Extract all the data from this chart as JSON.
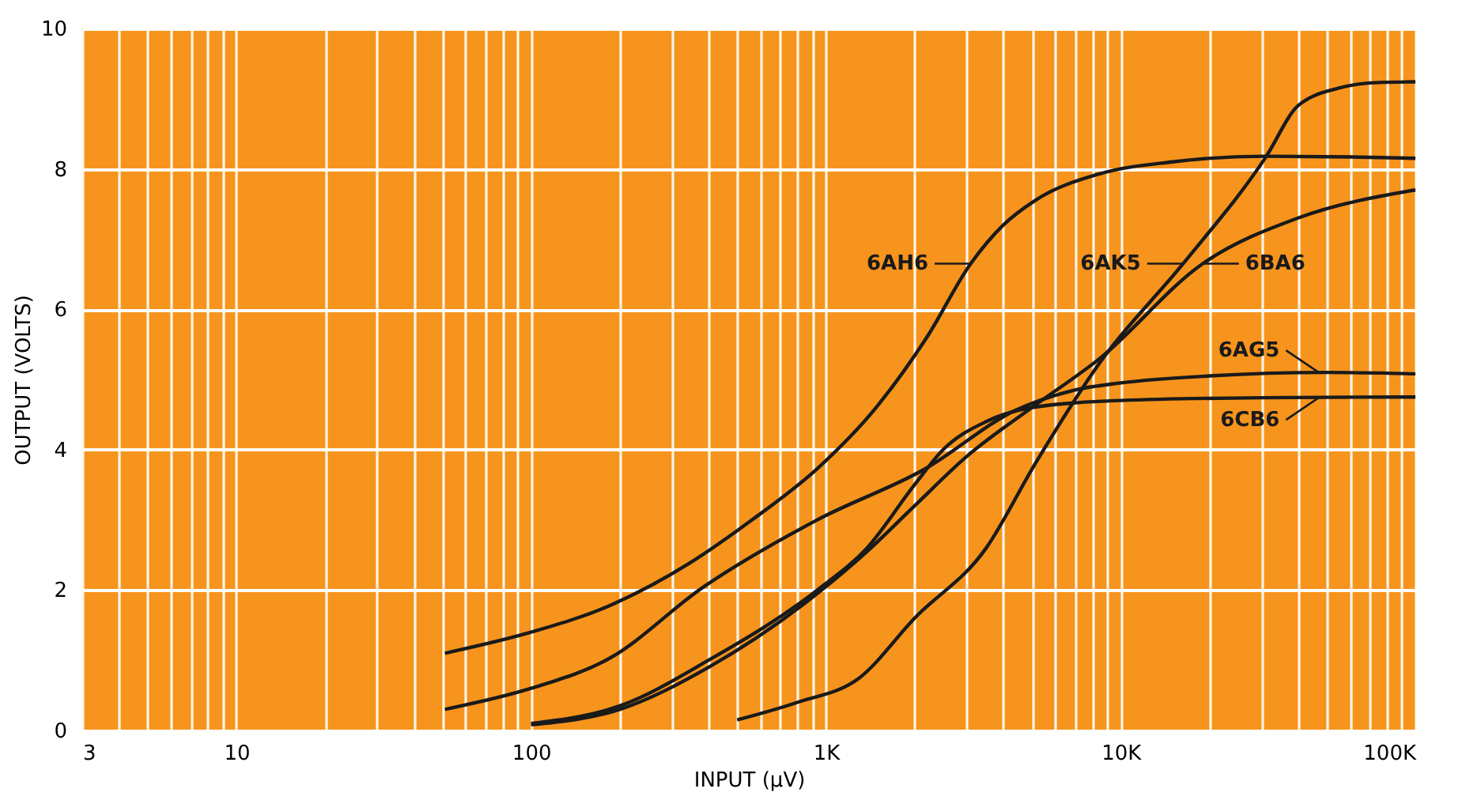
{
  "chart_data": {
    "type": "line",
    "xlabel": "INPUT (µV)",
    "ylabel": "OUTPUT (VOLTS)",
    "log": "x",
    "xlim": [
      3,
      100000
    ],
    "ylim": [
      0,
      10
    ],
    "xticks": [
      3,
      {
        "value": 4,
        "label": null
      },
      {
        "value": 5,
        "label": null
      },
      {
        "value": 6,
        "label": null
      },
      {
        "value": 7,
        "label": null
      },
      {
        "value": 8,
        "label": null
      },
      {
        "value": 9,
        "label": null
      },
      10,
      {
        "value": 20,
        "label": null
      },
      {
        "value": 30,
        "label": null
      },
      {
        "value": 40,
        "label": null
      },
      {
        "value": 50,
        "label": null
      },
      {
        "value": 60,
        "label": null
      },
      {
        "value": 70,
        "label": null
      },
      {
        "value": 80,
        "label": null
      },
      {
        "value": 90,
        "label": null
      },
      100,
      {
        "value": 200,
        "label": null
      },
      {
        "value": 300,
        "label": null
      },
      {
        "value": 400,
        "label": null
      },
      {
        "value": 500,
        "label": null
      },
      {
        "value": 600,
        "label": null
      },
      {
        "value": 700,
        "label": null
      },
      {
        "value": 800,
        "label": null
      },
      {
        "value": 900,
        "label": null
      },
      {
        "value": 1000,
        "label": "1K"
      },
      {
        "value": 2000,
        "label": null
      },
      {
        "value": 3000,
        "label": null
      },
      {
        "value": 4000,
        "label": null
      },
      {
        "value": 5000,
        "label": null
      },
      {
        "value": 6000,
        "label": null
      },
      {
        "value": 7000,
        "label": null
      },
      {
        "value": 8000,
        "label": null
      },
      {
        "value": 9000,
        "label": null
      },
      {
        "value": 10000,
        "label": "10K"
      },
      {
        "value": 20000,
        "label": null
      },
      {
        "value": 30000,
        "label": null
      },
      {
        "value": 40000,
        "label": null
      },
      {
        "value": 50000,
        "label": null
      },
      {
        "value": 60000,
        "label": null
      },
      {
        "value": 70000,
        "label": null
      },
      {
        "value": 80000,
        "label": null
      },
      {
        "value": 90000,
        "label": null
      },
      {
        "value": 100000,
        "label": "100K"
      }
    ],
    "yticks": [
      0,
      2,
      4,
      6,
      8,
      10
    ],
    "grid": true,
    "marker": "none",
    "line_style": "solid",
    "series": [
      {
        "color": "#1a1a1a",
        "x": [
          51,
          100,
          185,
          350,
          562,
          935,
          1480,
          2200,
          3100,
          4000,
          5130,
          8500,
          15000,
          31000,
          60000,
          100000
        ],
        "values": [
          1.1,
          1.4,
          1.78,
          2.4,
          3.0,
          3.73,
          4.6,
          5.6,
          6.65,
          7.2,
          7.55,
          7.93,
          8.1,
          8.18,
          8.17,
          8.15
        ]
      },
      {
        "color": "#1a1a1a",
        "x": [
          500,
          800,
          1300,
          2000,
          3500,
          5130,
          8500,
          16300,
          31000,
          40000,
          55000,
          75000,
          100000
        ],
        "values": [
          0.15,
          0.4,
          0.75,
          1.6,
          2.6,
          3.8,
          5.24,
          6.65,
          8.16,
          8.9,
          9.15,
          9.23,
          9.24
        ]
      },
      {
        "color": "#1a1a1a",
        "x": [
          100,
          200,
          400,
          935,
          1380,
          2000,
          3000,
          5000,
          8500,
          19000,
          40000,
          100000
        ],
        "values": [
          0.08,
          0.3,
          0.9,
          1.95,
          2.55,
          3.2,
          3.9,
          4.6,
          5.3,
          6.65,
          7.3,
          7.7
        ]
      },
      {
        "color": "#1a1a1a",
        "x": [
          51,
          100,
          185,
          383,
          935,
          2180,
          4400,
          7000,
          10000,
          20000,
          50000,
          100000
        ],
        "values": [
          0.3,
          0.6,
          1.03,
          2.04,
          3.0,
          3.73,
          4.56,
          4.85,
          4.95,
          5.05,
          5.1,
          5.08
        ]
      },
      {
        "color": "#1a1a1a",
        "x": [
          100,
          200,
          400,
          935,
          1380,
          2000,
          2500,
          3500,
          5000,
          10000,
          30000,
          100000
        ],
        "values": [
          0.1,
          0.35,
          1.0,
          2.0,
          2.6,
          3.5,
          4.0,
          4.4,
          4.6,
          4.7,
          4.74,
          4.75
        ]
      }
    ],
    "annotations": [
      {
        "text": "6AH6",
        "x": 3100,
        "y": 6.65
      },
      {
        "text": "6AK5",
        "x": 16300,
        "y": 6.65
      },
      {
        "text": "6BA6",
        "x": 19000,
        "y": 6.65
      },
      {
        "text": "6AG5",
        "x": 47000,
        "y": 5.1
      },
      {
        "text": "6CB6",
        "x": 47000,
        "y": 4.74
      }
    ]
  }
}
